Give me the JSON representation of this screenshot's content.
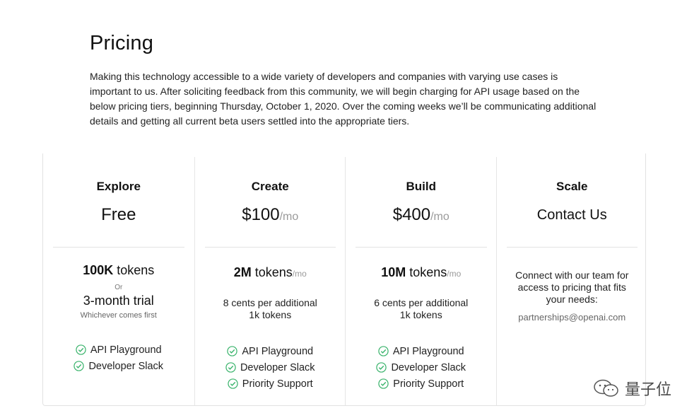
{
  "page": {
    "title": "Pricing",
    "intro": "Making this technology accessible to a wide variety of developers and companies with varying use cases is important to us. After soliciting feedback from this community, we will begin charging for API usage based on the below pricing tiers, beginning Thursday, October 1, 2020. Over the coming weeks we’ll be communicating additional details and getting all current beta users settled into the appropriate tiers."
  },
  "colors": {
    "gradient_start": "#4a78c7",
    "gradient_end": "#8b2bd0",
    "check": "#39b36b"
  },
  "tiers": [
    {
      "name": "Explore",
      "price": "Free",
      "tokens_bold": "100K",
      "tokens_text": " tokens",
      "or": "Or",
      "trial": "3-month trial",
      "whichever": "Whichever comes first",
      "features": [
        "API Playground",
        "Developer Slack"
      ]
    },
    {
      "name": "Create",
      "price": "$100",
      "price_unit": "/mo",
      "tokens_bold": "2M",
      "tokens_text": " tokens",
      "tokens_unit": "/mo",
      "extra_line1": "8 cents per additional",
      "extra_line2": "1k tokens",
      "features": [
        "API Playground",
        "Developer Slack",
        "Priority Support"
      ]
    },
    {
      "name": "Build",
      "price": "$400",
      "price_unit": "/mo",
      "tokens_bold": "10M",
      "tokens_text": " tokens",
      "tokens_unit": "/mo",
      "extra_line1": "6 cents per additional",
      "extra_line2": "1k tokens",
      "features": [
        "API Playground",
        "Developer Slack",
        "Priority Support"
      ]
    },
    {
      "name": "Scale",
      "price": "Contact Us",
      "connect_line1": "Connect with our team for",
      "connect_line2": "access to pricing that fits",
      "connect_line3": "your needs:",
      "email": "partnerships@openai.com"
    }
  ],
  "watermark": {
    "text": "量子位",
    "icon": "wechat-icon"
  }
}
